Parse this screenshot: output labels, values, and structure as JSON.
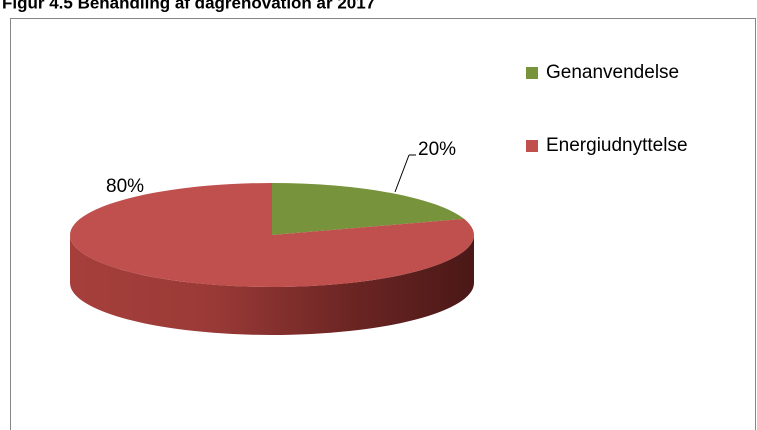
{
  "chart_data": {
    "type": "pie",
    "title": "Figur 4.5 Behandling af dagrenovation år 2017",
    "categories": [
      "Genanvendelse",
      "Energiudnyttelse"
    ],
    "values": [
      20,
      80
    ],
    "value_labels": [
      "20%",
      "80%"
    ],
    "colors": [
      "#77933c",
      "#c0504d"
    ],
    "legend": "right"
  }
}
